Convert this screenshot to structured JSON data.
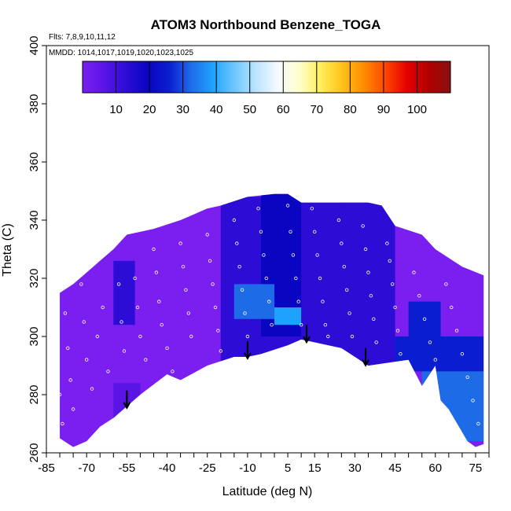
{
  "chart_data": {
    "type": "heatmap",
    "title": "ATOM3 Northbound Benzene_TOGA",
    "subtitle_flights": "Flts: 7,8,9,10,11,12",
    "subtitle_dates": "MMDD: 1014,1017,1019,1020,1023,1025",
    "xlabel": "Latitude (deg N)",
    "ylabel": "Theta (C)",
    "xlim": [
      -85,
      80
    ],
    "ylim": [
      260,
      400
    ],
    "x_ticks": [
      "-85",
      "-70",
      "-55",
      "-40",
      "-25",
      "-10",
      "5",
      "15",
      "30",
      "45",
      "60",
      "75"
    ],
    "x_tick_values": [
      -85,
      -70,
      -55,
      -40,
      -25,
      -10,
      5,
      15,
      30,
      45,
      60,
      75
    ],
    "y_ticks": [
      "260",
      "280",
      "300",
      "320",
      "340",
      "360",
      "380",
      "400"
    ],
    "y_tick_values": [
      260,
      280,
      300,
      320,
      340,
      360,
      380,
      400
    ],
    "colorbar": {
      "range": [
        0,
        110
      ],
      "tick_labels": [
        "10",
        "20",
        "30",
        "40",
        "50",
        "60",
        "70",
        "80",
        "90",
        "100"
      ],
      "tick_values": [
        10,
        20,
        30,
        40,
        50,
        60,
        70,
        80,
        90,
        100
      ],
      "colors": [
        "#7a1ff0",
        "#5a14e6",
        "#2d0dd6",
        "#0a05c0",
        "#0a1ed0",
        "#1e6be8",
        "#1ea2ff",
        "#6cc6ff",
        "#b9e4ff",
        "#f4fbff",
        "#ffffcc",
        "#ffef5c",
        "#ffc21a",
        "#ff8c00",
        "#ff4500",
        "#e60000",
        "#b00000",
        "#8a1010"
      ]
    },
    "arrows_lat": [
      -55,
      -10,
      12,
      34
    ],
    "upper_boundary": [
      [
        -83,
        312
      ],
      [
        -80,
        315
      ],
      [
        -75,
        318
      ],
      [
        -70,
        322
      ],
      [
        -65,
        326
      ],
      [
        -60,
        330
      ],
      [
        -55,
        335
      ],
      [
        -45,
        337
      ],
      [
        -35,
        340
      ],
      [
        -30,
        342
      ],
      [
        -25,
        344
      ],
      [
        -20,
        345
      ],
      [
        -10,
        348
      ],
      [
        0,
        349
      ],
      [
        5,
        349
      ],
      [
        10,
        346
      ],
      [
        25,
        346
      ],
      [
        35,
        346
      ],
      [
        40,
        345
      ],
      [
        45,
        338
      ],
      [
        55,
        335
      ],
      [
        60,
        330
      ],
      [
        65,
        327
      ],
      [
        70,
        324
      ],
      [
        78,
        321
      ]
    ],
    "lower_boundary": [
      [
        78,
        263
      ],
      [
        75,
        262
      ],
      [
        72,
        264
      ],
      [
        65,
        275
      ],
      [
        62,
        278
      ],
      [
        60,
        290
      ],
      [
        55,
        283
      ],
      [
        50,
        292
      ],
      [
        35,
        290
      ],
      [
        25,
        296
      ],
      [
        15,
        298
      ],
      [
        10,
        299
      ],
      [
        5,
        297
      ],
      [
        -5,
        294
      ],
      [
        -10,
        293
      ],
      [
        -15,
        293
      ],
      [
        -25,
        290
      ],
      [
        -35,
        285
      ],
      [
        -40,
        287
      ],
      [
        -50,
        280
      ],
      [
        -60,
        272
      ],
      [
        -65,
        269
      ],
      [
        -70,
        264
      ],
      [
        -75,
        262
      ],
      [
        -80,
        265
      ],
      [
        -83,
        271
      ]
    ],
    "patches": [
      {
        "x": [
          -80,
          80
        ],
        "y": [
          262,
          350
        ],
        "value": 5
      },
      {
        "x": [
          -20,
          45
        ],
        "y": [
          290,
          348
        ],
        "value": 18
      },
      {
        "x": [
          -5,
          10
        ],
        "y": [
          300,
          350
        ],
        "value": 20
      },
      {
        "x": [
          25,
          45
        ],
        "y": [
          310,
          346
        ],
        "value": 16
      },
      {
        "x": [
          -60,
          -52
        ],
        "y": [
          304,
          326
        ],
        "value": 14
      },
      {
        "x": [
          -15,
          0
        ],
        "y": [
          306,
          318
        ],
        "value": 32
      },
      {
        "x": [
          0,
          10
        ],
        "y": [
          304,
          310
        ],
        "value": 42
      },
      {
        "x": [
          45,
          78
        ],
        "y": [
          288,
          300
        ],
        "value": 30
      },
      {
        "x": [
          55,
          78
        ],
        "y": [
          264,
          288
        ],
        "value": 34
      },
      {
        "x": [
          50,
          62
        ],
        "y": [
          300,
          312
        ],
        "value": 25
      },
      {
        "x": [
          -60,
          -50
        ],
        "y": [
          270,
          284
        ],
        "value": 8
      }
    ],
    "sample_points": [
      [
        -82,
        300
      ],
      [
        -81,
        290
      ],
      [
        -80,
        280
      ],
      [
        -79,
        270
      ],
      [
        -78,
        308
      ],
      [
        -77,
        296
      ],
      [
        -76,
        285
      ],
      [
        -75,
        275
      ],
      [
        -72,
        318
      ],
      [
        -71,
        305
      ],
      [
        -70,
        292
      ],
      [
        -68,
        282
      ],
      [
        -66,
        300
      ],
      [
        -64,
        310
      ],
      [
        -62,
        288
      ],
      [
        -58,
        318
      ],
      [
        -57,
        305
      ],
      [
        -56,
        295
      ],
      [
        -52,
        320
      ],
      [
        -51,
        310
      ],
      [
        -50,
        300
      ],
      [
        -48,
        292
      ],
      [
        -45,
        330
      ],
      [
        -44,
        322
      ],
      [
        -43,
        312
      ],
      [
        -42,
        304
      ],
      [
        -40,
        296
      ],
      [
        -38,
        288
      ],
      [
        -35,
        332
      ],
      [
        -34,
        324
      ],
      [
        -33,
        316
      ],
      [
        -32,
        308
      ],
      [
        -31,
        300
      ],
      [
        -25,
        335
      ],
      [
        -24,
        326
      ],
      [
        -23,
        318
      ],
      [
        -22,
        310
      ],
      [
        -21,
        302
      ],
      [
        -20,
        295
      ],
      [
        -15,
        340
      ],
      [
        -14,
        332
      ],
      [
        -13,
        324
      ],
      [
        -12,
        316
      ],
      [
        -11,
        308
      ],
      [
        -10,
        300
      ],
      [
        -6,
        344
      ],
      [
        -5,
        336
      ],
      [
        -4,
        328
      ],
      [
        -3,
        320
      ],
      [
        -2,
        312
      ],
      [
        -1,
        304
      ],
      [
        5,
        345
      ],
      [
        6,
        336
      ],
      [
        7,
        328
      ],
      [
        8,
        320
      ],
      [
        9,
        312
      ],
      [
        10,
        304
      ],
      [
        14,
        344
      ],
      [
        15,
        336
      ],
      [
        16,
        328
      ],
      [
        17,
        320
      ],
      [
        18,
        312
      ],
      [
        19,
        304
      ],
      [
        20,
        300
      ],
      [
        24,
        340
      ],
      [
        25,
        332
      ],
      [
        26,
        324
      ],
      [
        27,
        316
      ],
      [
        28,
        308
      ],
      [
        29,
        300
      ],
      [
        33,
        338
      ],
      [
        34,
        330
      ],
      [
        35,
        322
      ],
      [
        36,
        314
      ],
      [
        37,
        306
      ],
      [
        38,
        298
      ],
      [
        42,
        332
      ],
      [
        43,
        326
      ],
      [
        44,
        318
      ],
      [
        45,
        310
      ],
      [
        46,
        302
      ],
      [
        47,
        294
      ],
      [
        52,
        322
      ],
      [
        54,
        314
      ],
      [
        56,
        306
      ],
      [
        58,
        298
      ],
      [
        60,
        292
      ],
      [
        64,
        318
      ],
      [
        66,
        310
      ],
      [
        68,
        302
      ],
      [
        70,
        294
      ],
      [
        72,
        286
      ],
      [
        74,
        278
      ],
      [
        76,
        270
      ]
    ]
  }
}
